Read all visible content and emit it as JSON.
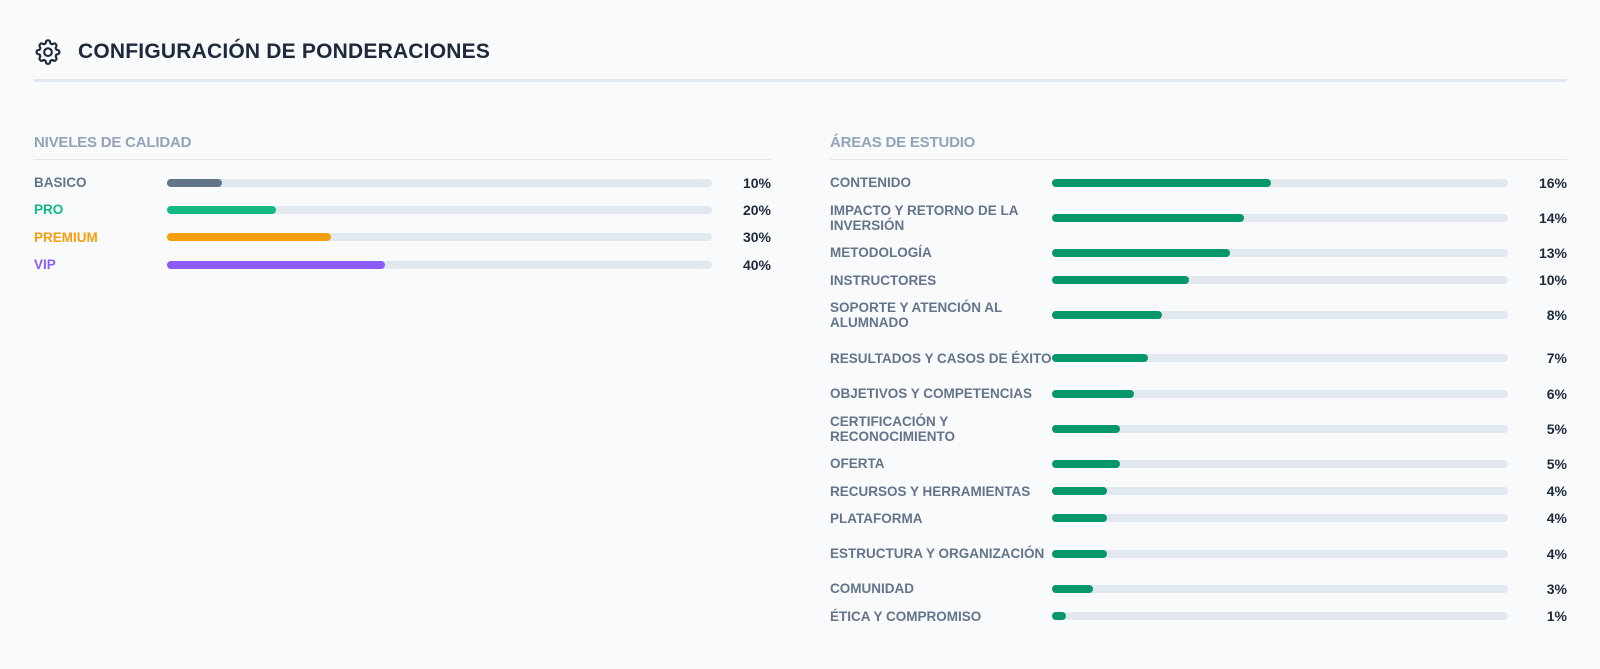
{
  "header": {
    "title": "CONFIGURACIÓN DE PONDERACIONES",
    "icon": "gear-icon"
  },
  "colors": {
    "basico": "#64748b",
    "pro": "#10b981",
    "premium": "#f59e0b",
    "vip": "#8b5cf6",
    "areas": "#059669",
    "track": "#e2e8f0"
  },
  "chart_data": [
    {
      "type": "bar",
      "title": "NIVELES DE CALIDAD",
      "orientation": "horizontal",
      "categories": [
        "BASICO",
        "PRO",
        "PREMIUM",
        "VIP"
      ],
      "values": [
        10,
        20,
        30,
        40
      ],
      "value_labels": [
        "10%",
        "20%",
        "30%",
        "40%"
      ],
      "bar_colors": [
        "#64748b",
        "#10b981",
        "#f59e0b",
        "#8b5cf6"
      ],
      "label_colors": [
        "#64748b",
        "#10b981",
        "#f59e0b",
        "#8b5cf6"
      ],
      "xlim": [
        0,
        100
      ],
      "grid": false
    },
    {
      "type": "bar",
      "title": "ÁREAS DE ESTUDIO",
      "orientation": "horizontal",
      "categories": [
        "CONTENIDO",
        "IMPACTO Y RETORNO DE LA INVERSIÓN",
        "METODOLOGÍA",
        "INSTRUCTORES",
        "SOPORTE Y ATENCIÓN AL ALUMNADO",
        "RESULTADOS Y CASOS DE ÉXITO",
        "OBJETIVOS Y COMPETENCIAS",
        "CERTIFICACIÓN Y RECONOCIMIENTO",
        "OFERTA",
        "RECURSOS Y HERRAMIENTAS",
        "PLATAFORMA",
        "ESTRUCTURA Y ORGANIZACIÓN",
        "COMUNIDAD",
        "ÉTICA Y COMPROMISO"
      ],
      "values": [
        16,
        14,
        13,
        10,
        8,
        7,
        6,
        5,
        5,
        4,
        4,
        4,
        3,
        1
      ],
      "value_labels": [
        "16%",
        "14%",
        "13%",
        "10%",
        "8%",
        "7%",
        "6%",
        "5%",
        "5%",
        "4%",
        "4%",
        "4%",
        "3%",
        "1%"
      ],
      "bar_color": "#059669",
      "xlim": [
        0,
        33.3
      ],
      "grid": false
    }
  ]
}
